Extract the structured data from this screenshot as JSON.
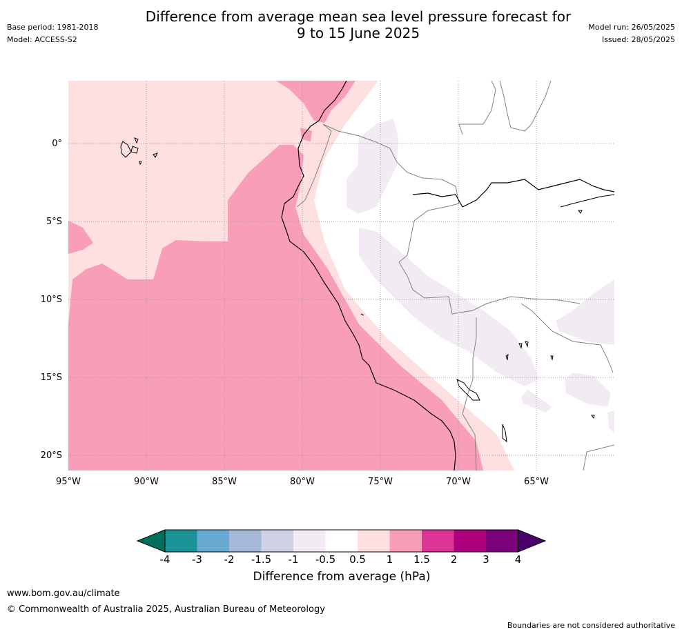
{
  "title": {
    "line1": "Difference from average mean sea level pressure forecast for",
    "line2": "9 to 15 June 2025"
  },
  "meta": {
    "base_period": "Base period: 1981-2018",
    "model": "Model: ACCESS-S2",
    "model_run": "Model run: 26/05/2025",
    "issued": "Issued: 28/05/2025"
  },
  "map": {
    "longitude_labels": [
      "95°W",
      "90°W",
      "85°W",
      "80°W",
      "75°W",
      "70°W",
      "65°W"
    ],
    "latitude_labels": [
      "0°",
      "5°S",
      "10°S",
      "15°S",
      "20°S"
    ],
    "region_colors": {
      "light_pink": "#fde0df",
      "pink": "#f99eb8",
      "lavender": "#f2ebf4",
      "coastline": "#000000",
      "border": "#808080",
      "grid": "#999999"
    }
  },
  "colorbar": {
    "tick_labels": [
      "-4",
      "-3",
      "-2",
      "-1.5",
      "-1",
      "-0.5",
      "0.5",
      "1",
      "1.5",
      "2",
      "3",
      "4"
    ],
    "colors": [
      "#00705e",
      "#1a9296",
      "#69aad2",
      "#a6b8d8",
      "#d0d1e6",
      "#f2ebf4",
      "#ffffff",
      "#fde0df",
      "#f99eb8",
      "#dd3497",
      "#ae017e",
      "#7a0177",
      "#49006a"
    ],
    "label": "Difference from average (hPa)"
  },
  "footer": {
    "url": "www.bom.gov.au/climate",
    "copyright": "© Commonwealth of Australia 2025, Australian Bureau of Meteorology",
    "disclaimer": "Boundaries are not considered authoritative"
  }
}
